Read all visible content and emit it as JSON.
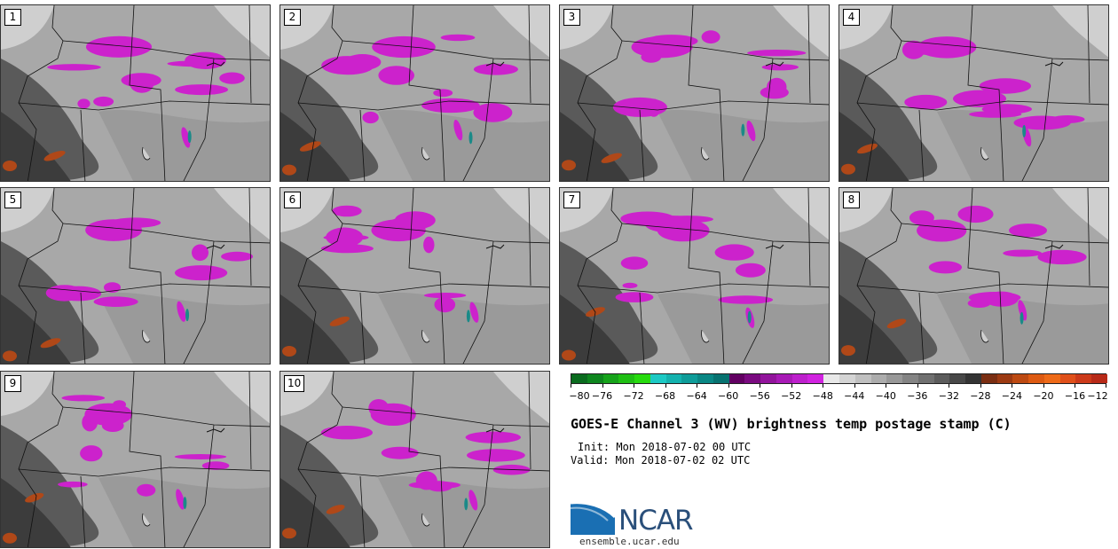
{
  "panels": [
    "1",
    "2",
    "3",
    "4",
    "5",
    "6",
    "7",
    "8",
    "9",
    "10"
  ],
  "colorbar": {
    "colors": [
      "#0a6b1e",
      "#0e861e",
      "#16a31a",
      "#1fbf14",
      "#27db0e",
      "#1cc9c4",
      "#14b2ae",
      "#0e9c99",
      "#0a8784",
      "#077270",
      "#620062",
      "#7a0a80",
      "#92149c",
      "#a81ab6",
      "#bd20cc",
      "#d123e0",
      "#e8e8e8",
      "#d4d4d4",
      "#c0c0c0",
      "#acacac",
      "#989898",
      "#848484",
      "#707070",
      "#5c5c5c",
      "#484848",
      "#343434",
      "#7a2e12",
      "#9c3a12",
      "#bd4a12",
      "#dd5a12",
      "#ee6a18",
      "#e0501a",
      "#cc3a1a",
      "#b82a18"
    ],
    "ticks": [
      "−80",
      "−76",
      "−72",
      "−68",
      "−64",
      "−60",
      "−56",
      "−52",
      "−48",
      "−44",
      "−40",
      "−36",
      "−32",
      "−28",
      "−24",
      "−20",
      "−16",
      "−12"
    ]
  },
  "title": "GOES-E Channel 3 (WV) brightness temp postage stamp (C)",
  "init": "Init: Mon 2018-07-02 00 UTC",
  "valid": "Valid: Mon 2018-07-02 02 UTC",
  "logo": {
    "text": "NCAR",
    "site": "ensemble.ucar.edu",
    "icon": "ncar-logo-icon"
  },
  "map_colors": {
    "background": "#a8a8a8",
    "dark": "#5a5a5a",
    "darker": "#3c3c3c",
    "light": "#cfcfcf",
    "cold": "#cc22cc",
    "coldest": "#1a8a88",
    "warm": "#b04818"
  }
}
